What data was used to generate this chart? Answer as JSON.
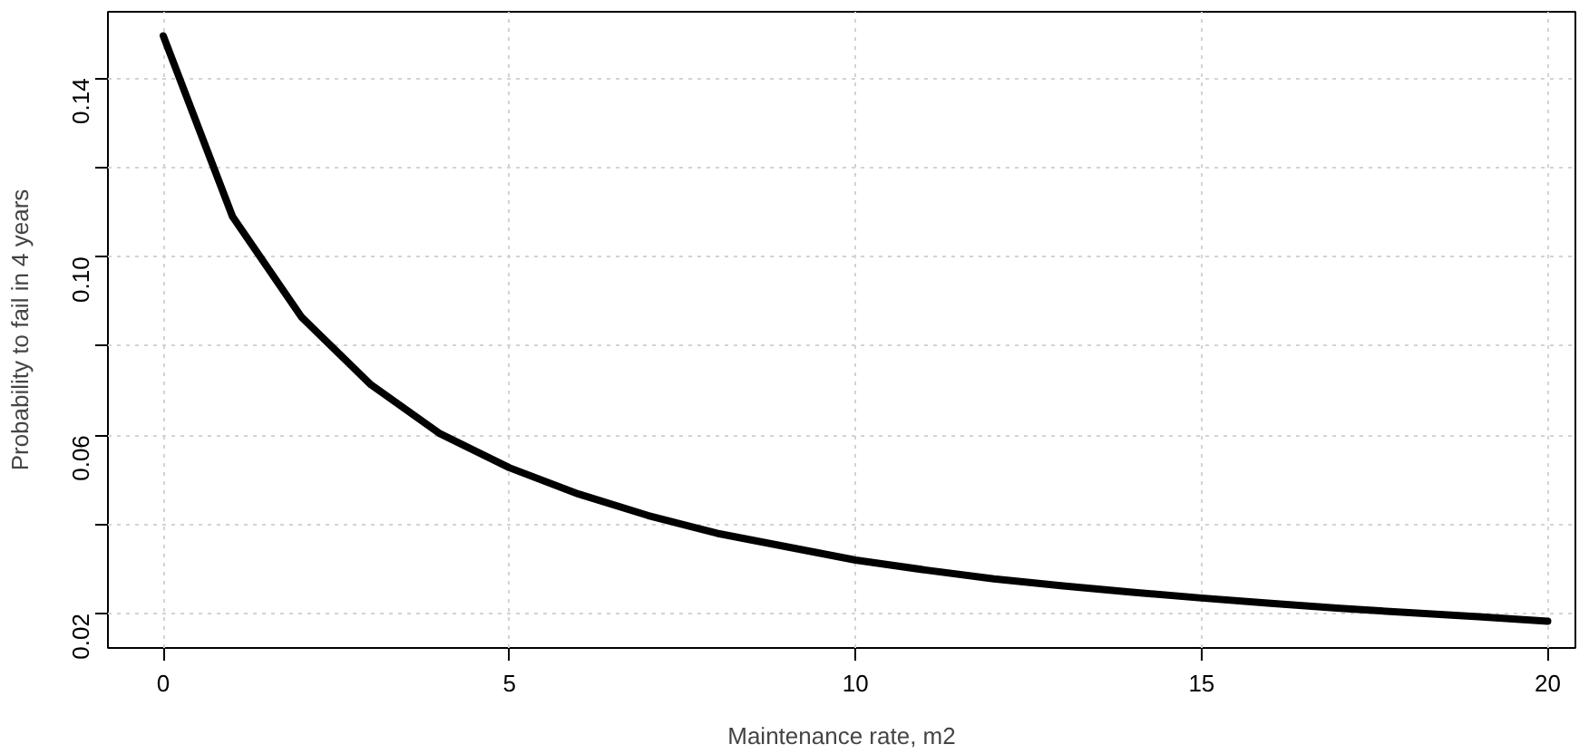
{
  "chart_data": {
    "type": "line",
    "xlabel": "Maintenance rate, m2",
    "ylabel": "Probability to fail in 4 years",
    "x": [
      0,
      1,
      2,
      3,
      4,
      5,
      6,
      7,
      8,
      9,
      10,
      11,
      12,
      13,
      14,
      15,
      16,
      17,
      18,
      19,
      20
    ],
    "series": [
      {
        "color": "#000000",
        "values": [
          0.1495,
          0.109,
          0.0864,
          0.0713,
          0.0603,
          0.0527,
          0.0468,
          0.042,
          0.038,
          0.035,
          0.032,
          0.0298,
          0.0278,
          0.0262,
          0.0248,
          0.0235,
          0.0223,
          0.0212,
          0.0202,
          0.0193,
          0.0183
        ]
      }
    ],
    "xlim": [
      -0.8,
      20.4
    ],
    "ylim": [
      0.0123,
      0.1549
    ],
    "xticks": [
      0,
      5,
      10,
      15,
      20
    ],
    "yticks": [
      {
        "value": 0.02,
        "label": "0.02"
      },
      {
        "value": 0.04,
        "label": null
      },
      {
        "value": 0.06,
        "label": "0.06"
      },
      {
        "value": 0.08,
        "label": null
      },
      {
        "value": 0.1,
        "label": "0.10"
      },
      {
        "value": 0.12,
        "label": null
      },
      {
        "value": 0.14,
        "label": "0.14"
      }
    ],
    "grid": true,
    "line_style": "solid",
    "marker": "none"
  }
}
